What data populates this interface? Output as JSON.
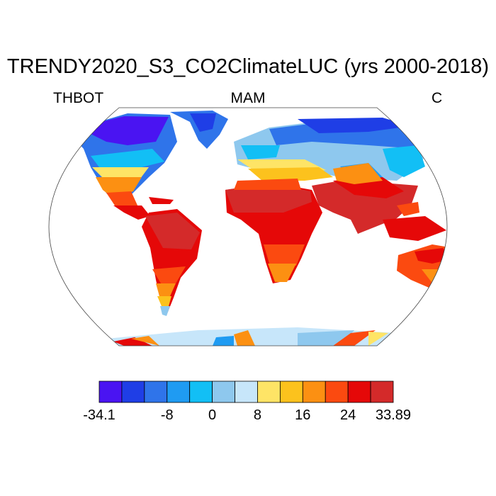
{
  "title": "TRENDY2020_S3_CO2ClimateLUC (yrs 2000-2018)",
  "subtitle_left": "THBOT",
  "subtitle_center": "MAM",
  "subtitle_right": "C",
  "colorbar": {
    "colors": [
      "#4a14f2",
      "#1f3ee6",
      "#2f74ea",
      "#1f9bf2",
      "#12bff5",
      "#8ec8ee",
      "#c7e6fa",
      "#fee466",
      "#fcc21d",
      "#fc9012",
      "#fb4a10",
      "#e50808",
      "#d42a2a"
    ],
    "labels": [
      {
        "text": "-34.1",
        "slot": 0
      },
      {
        "text": "-8",
        "slot": 3
      },
      {
        "text": "0",
        "slot": 5
      },
      {
        "text": "8",
        "slot": 7
      },
      {
        "text": "16",
        "slot": 9
      },
      {
        "text": "24",
        "slot": 11
      },
      {
        "text": "33.89",
        "slot": 13
      }
    ]
  }
}
